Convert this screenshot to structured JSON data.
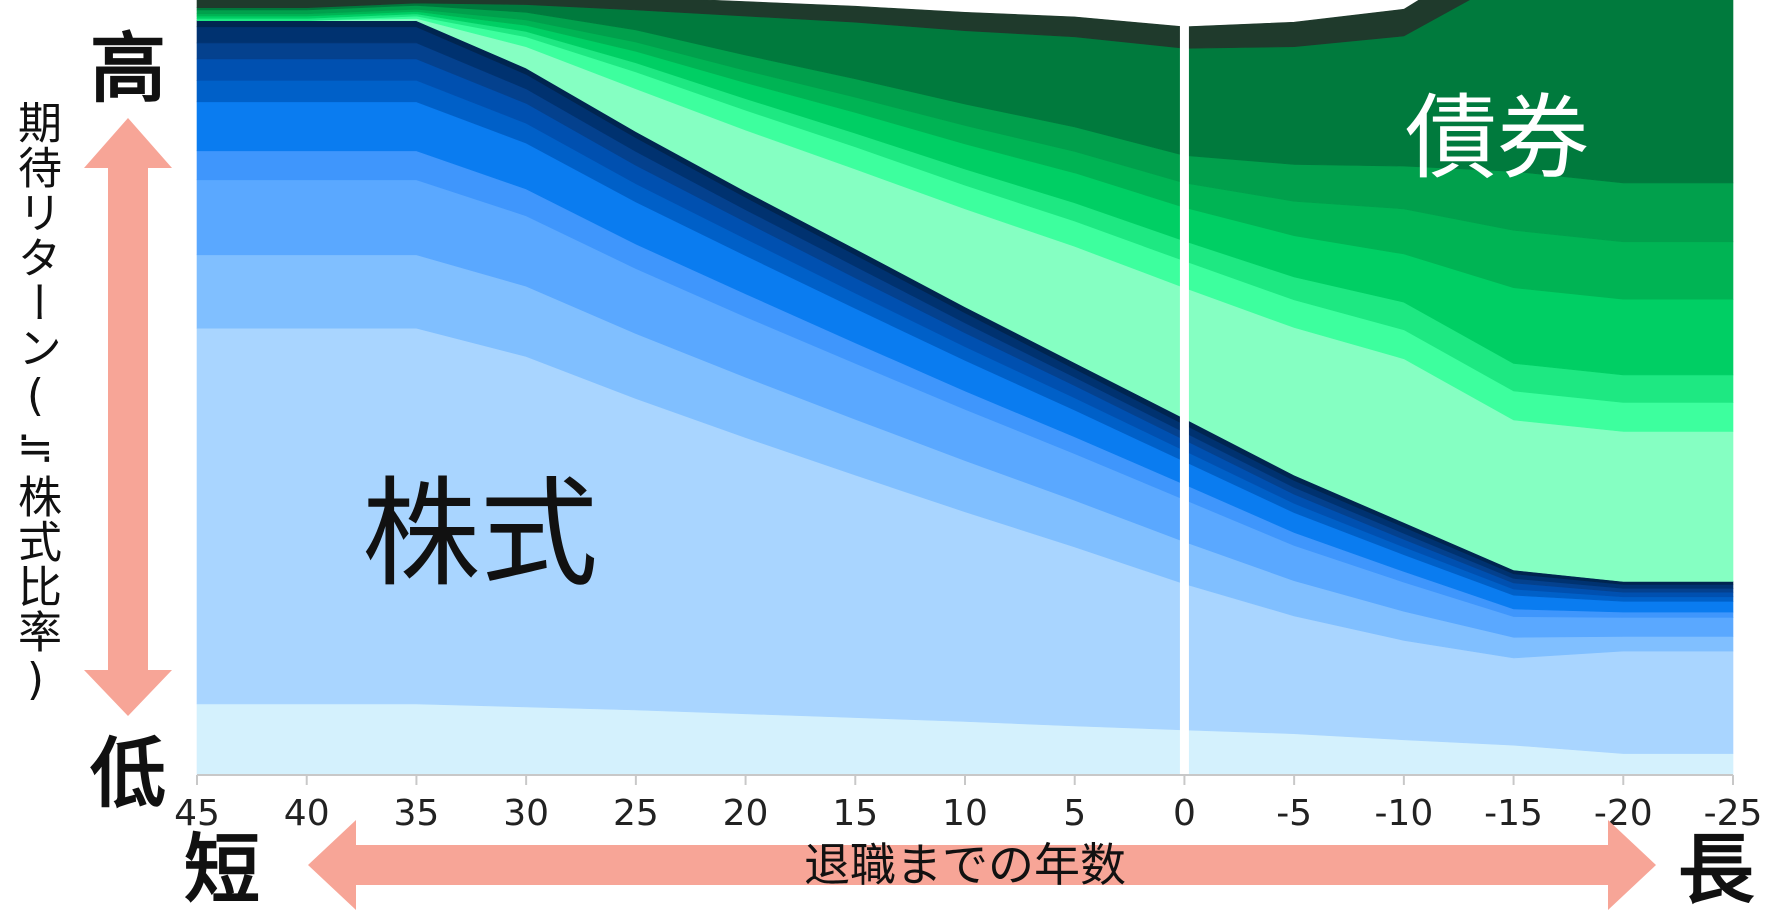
{
  "chart_data": {
    "type": "area",
    "stacked": true,
    "title": "",
    "xlabel": "退職までの年数",
    "ylabel": "期待リターン(≒株式比率)",
    "xlim": [
      45,
      -25
    ],
    "x_ticks": [
      "45",
      "40",
      "35",
      "30",
      "25",
      "20",
      "15",
      "10",
      "5",
      "0",
      "-5",
      "-10",
      "-15",
      "-20",
      "-25"
    ],
    "y_axis_top": "高",
    "y_axis_bottom": "低",
    "x_axis_left": "短",
    "x_axis_right": "長",
    "annotations": {
      "stocks": "株式",
      "bonds": "債券"
    },
    "reference_line_x": 0,
    "grid": false,
    "x": [
      45,
      40,
      35,
      30,
      25,
      20,
      15,
      10,
      5,
      0,
      -5,
      -10,
      -15,
      -20,
      -25
    ],
    "series": [
      {
        "group": "株式",
        "color": "#d4f1fd",
        "values": [
          9.3,
          9.3,
          9.3,
          8.9,
          8.5,
          8.0,
          7.5,
          7.0,
          6.4,
          5.9,
          5.4,
          4.6,
          3.9,
          2.8,
          2.8
        ]
      },
      {
        "group": "株式",
        "color": "#a9d5ff",
        "values": [
          49.1,
          49.1,
          49.1,
          45.8,
          40.7,
          36.1,
          31.7,
          27.4,
          23.4,
          19.1,
          15.4,
          13.0,
          11.4,
          13.4,
          13.4
        ]
      },
      {
        "group": "株式",
        "color": "#80bfff",
        "values": [
          9.6,
          9.6,
          9.6,
          9.2,
          8.5,
          7.9,
          7.3,
          6.7,
          6.1,
          5.5,
          4.6,
          3.8,
          2.7,
          1.9,
          1.9
        ]
      },
      {
        "group": "株式",
        "color": "#5aa8ff",
        "values": [
          9.8,
          9.8,
          9.8,
          9.2,
          8.5,
          7.9,
          7.3,
          6.7,
          6.1,
          5.5,
          4.6,
          3.8,
          2.7,
          2.5,
          2.5
        ]
      },
      {
        "group": "株式",
        "color": "#3f96fc",
        "values": [
          3.8,
          3.8,
          3.8,
          3.5,
          3.2,
          3.0,
          2.7,
          2.4,
          2.2,
          2.0,
          1.7,
          1.4,
          1.0,
          0.7,
          0.7
        ]
      },
      {
        "group": "株式",
        "color": "#0a7cf0",
        "values": [
          6.4,
          6.4,
          6.4,
          6.0,
          5.5,
          5.0,
          4.5,
          4.0,
          3.5,
          3.0,
          2.6,
          2.2,
          1.8,
          1.4,
          1.4
        ]
      },
      {
        "group": "株式",
        "color": "#0060c8",
        "values": [
          2.8,
          2.8,
          2.8,
          2.6,
          2.4,
          2.2,
          2.0,
          1.8,
          1.6,
          1.4,
          1.2,
          1.0,
          0.8,
          0.6,
          0.6
        ]
      },
      {
        "group": "株式",
        "color": "#0050b0",
        "values": [
          2.8,
          2.8,
          2.8,
          2.6,
          2.4,
          2.2,
          2.0,
          1.8,
          1.6,
          1.4,
          1.2,
          1.0,
          0.8,
          0.6,
          0.6
        ]
      },
      {
        "group": "株式",
        "color": "#04418e",
        "values": [
          2.1,
          2.1,
          2.1,
          1.9,
          1.8,
          1.6,
          1.5,
          1.3,
          1.1,
          1.0,
          0.9,
          0.8,
          0.6,
          0.5,
          0.5
        ]
      },
      {
        "group": "株式",
        "color": "#003270",
        "values": [
          2.1,
          2.1,
          2.1,
          1.9,
          1.8,
          1.6,
          1.5,
          1.3,
          1.1,
          1.0,
          0.9,
          0.8,
          0.6,
          0.5,
          0.5
        ]
      },
      {
        "group": "株式",
        "color": "#002550",
        "values": [
          0.8,
          0.8,
          0.8,
          0.8,
          0.8,
          0.8,
          0.8,
          0.8,
          0.8,
          0.8,
          0.7,
          0.6,
          0.5,
          0.4,
          0.4
        ]
      },
      {
        "group": "債券",
        "color": "#85ffc2",
        "values": [
          0.0,
          0.0,
          0.3,
          2.8,
          5.6,
          8.0,
          10.4,
          12.8,
          15.2,
          17.1,
          19.3,
          21.4,
          19.6,
          19.6,
          19.6
        ]
      },
      {
        "group": "債券",
        "color": "#3dff9e",
        "values": [
          0.0,
          0.0,
          0.3,
          1.3,
          2.2,
          2.6,
          2.9,
          3.1,
          3.3,
          3.5,
          3.6,
          3.8,
          3.8,
          3.8,
          3.8
        ]
      },
      {
        "group": "債券",
        "color": "#1ee882",
        "values": [
          0.3,
          0.3,
          0.3,
          0.7,
          1.2,
          1.5,
          1.8,
          2.1,
          2.4,
          2.6,
          3.0,
          3.6,
          3.6,
          3.6,
          3.6
        ]
      },
      {
        "group": "債券",
        "color": "#00cf64",
        "values": [
          0.3,
          0.3,
          0.3,
          0.8,
          1.5,
          2.1,
          2.7,
          3.3,
          3.9,
          4.4,
          5.4,
          6.3,
          9.9,
          9.9,
          9.9
        ]
      },
      {
        "group": "債券",
        "color": "#00b454",
        "values": [
          0.3,
          0.3,
          0.3,
          0.7,
          1.2,
          1.6,
          2.0,
          2.4,
          2.8,
          3.2,
          4.5,
          5.9,
          7.5,
          7.5,
          7.5
        ]
      },
      {
        "group": "債券",
        "color": "#01a04c",
        "values": [
          0.5,
          0.5,
          0.5,
          1.0,
          1.6,
          2.0,
          2.4,
          2.8,
          3.2,
          3.6,
          4.8,
          5.6,
          7.7,
          7.7,
          7.7
        ]
      },
      {
        "group": "債券",
        "color": "#007a3d",
        "values": [
          0.3,
          0.3,
          0.3,
          1.0,
          2.6,
          5.1,
          7.4,
          9.6,
          11.8,
          14.0,
          15.4,
          17.0,
          25.6,
          25.6,
          25.6
        ]
      },
      {
        "group": "債券",
        "color": "#1f3a2c",
        "values": [
          1.2,
          1.2,
          1.4,
          1.4,
          1.7,
          1.9,
          2.1,
          2.4,
          2.6,
          2.8,
          3.2,
          3.5,
          4.4,
          4.4,
          4.4
        ]
      }
    ]
  },
  "colors": {
    "arrow": "#f7a597",
    "divider": "#ffffff",
    "axis": "#c8c8c8",
    "text": "#111111"
  }
}
